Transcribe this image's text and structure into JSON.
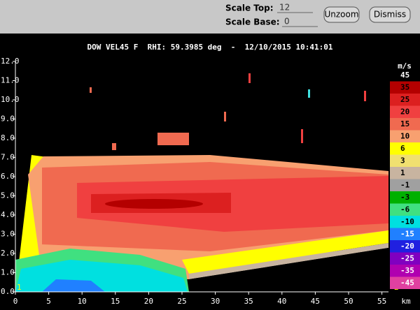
{
  "controls": {
    "scale_top_label": "Scale Top:",
    "scale_top_value": "12",
    "scale_base_label": "Scale Base:",
    "scale_base_value": "0",
    "unzoom": "Unzoom",
    "dismiss": "Dismiss"
  },
  "plot": {
    "title": "DOW VEL45 F  RHI: 59.3985 deg  -  12/10/2015 10:41:01",
    "y_labels": [
      "0.0",
      "1.0",
      "2.0",
      "3.0",
      "4.0",
      "5.0",
      "6.0",
      "7.0",
      "8.0",
      "9.0",
      "10.0",
      "11.0",
      "12.0"
    ],
    "x_labels": [
      "0",
      "5",
      "10",
      "15",
      "20",
      "25",
      "30",
      "35",
      "40",
      "45",
      "50",
      "55"
    ],
    "x_unit": "km",
    "colorbar_unit": "m/s",
    "corner_left": "1",
    "corner_right": "2",
    "colorbar": [
      {
        "label": "45",
        "color": "#000000"
      },
      {
        "label": "35",
        "color": "#b40000"
      },
      {
        "label": "25",
        "color": "#dc2020"
      },
      {
        "label": "20",
        "color": "#f04040"
      },
      {
        "label": "15",
        "color": "#f06a50"
      },
      {
        "label": "10",
        "color": "#f8a070"
      },
      {
        "label": "6",
        "color": "#ffff00"
      },
      {
        "label": "3",
        "color": "#f0e070"
      },
      {
        "label": "1",
        "color": "#c8b4a0"
      },
      {
        "label": "-1",
        "color": "#a0a0a0"
      },
      {
        "label": "-3",
        "color": "#00b000"
      },
      {
        "label": "-6",
        "color": "#40e080"
      },
      {
        "label": "-10",
        "color": "#00e0e0"
      },
      {
        "label": "-15",
        "color": "#2080ff"
      },
      {
        "label": "-20",
        "color": "#2020e0"
      },
      {
        "label": "-25",
        "color": "#8000c0"
      },
      {
        "label": "-35",
        "color": "#b000b0"
      },
      {
        "label": "-45",
        "color": "#e040a0"
      }
    ]
  }
}
